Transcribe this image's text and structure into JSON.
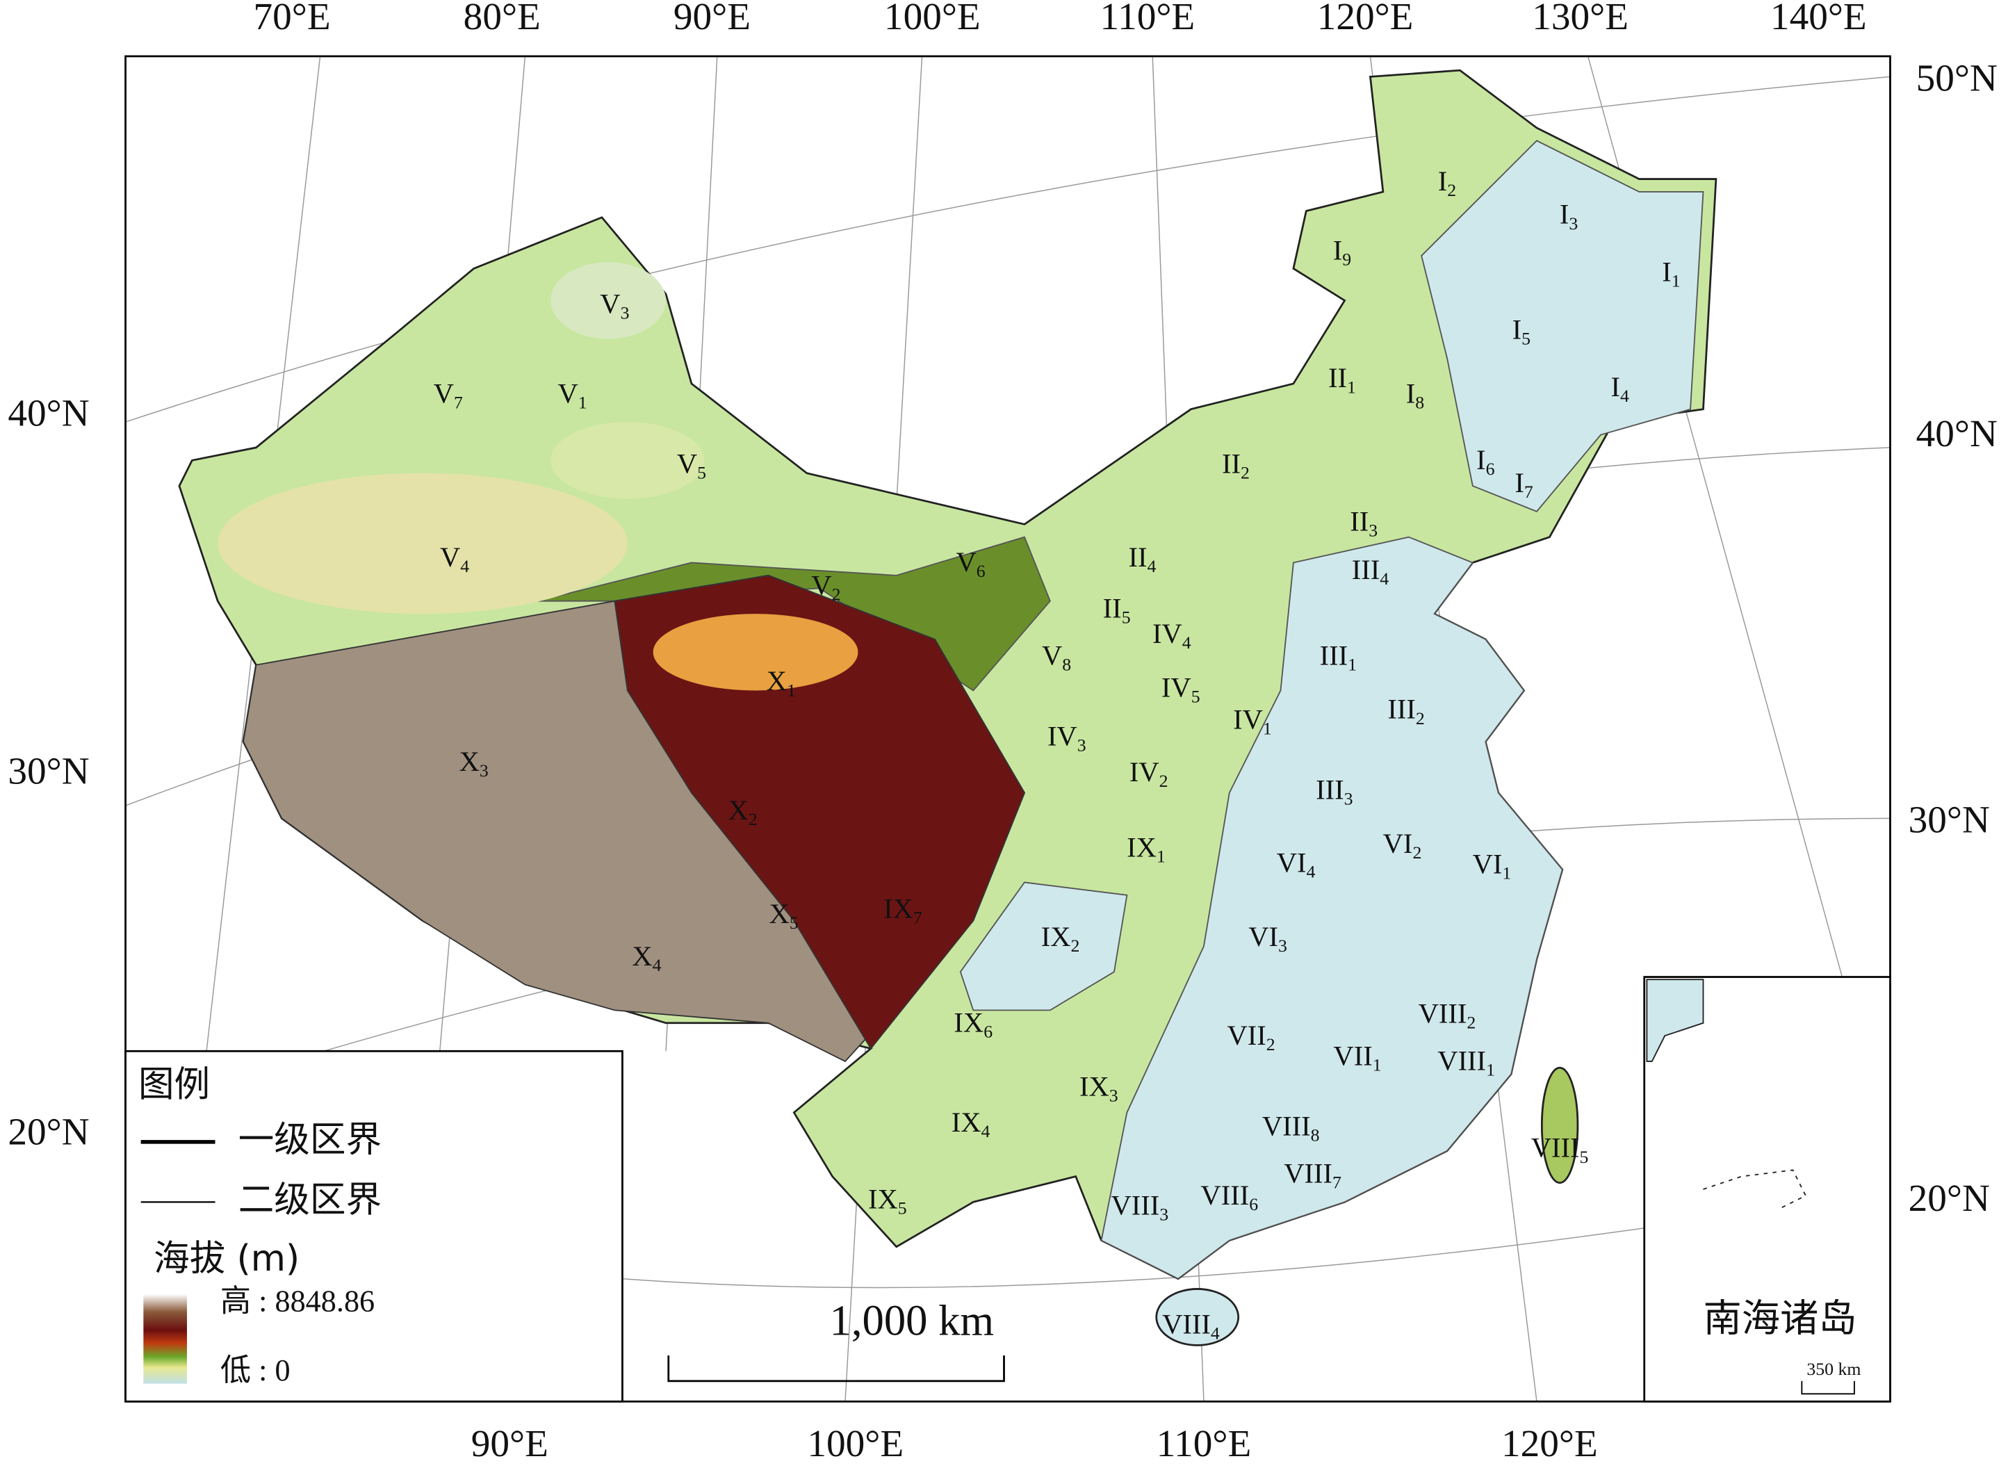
{
  "graticule": {
    "top": [
      "70°E",
      "80°E",
      "90°E",
      "100°E",
      "110°E",
      "120°E",
      "130°E",
      "140°E"
    ],
    "bottom": [
      "90°E",
      "100°E",
      "110°E",
      "120°E"
    ],
    "left": [
      "40°N",
      "30°N",
      "20°N"
    ],
    "right": [
      "50°N",
      "40°N",
      "30°N",
      "20°N"
    ]
  },
  "regions": [
    {
      "numeral": "I",
      "sub": "2"
    },
    {
      "numeral": "I",
      "sub": "3"
    },
    {
      "numeral": "I",
      "sub": "9"
    },
    {
      "numeral": "I",
      "sub": "1"
    },
    {
      "numeral": "I",
      "sub": "5"
    },
    {
      "numeral": "I",
      "sub": "4"
    },
    {
      "numeral": "II",
      "sub": "1"
    },
    {
      "numeral": "I",
      "sub": "8"
    },
    {
      "numeral": "I",
      "sub": "6"
    },
    {
      "numeral": "I",
      "sub": "7"
    },
    {
      "numeral": "II",
      "sub": "2"
    },
    {
      "numeral": "II",
      "sub": "3"
    },
    {
      "numeral": "II",
      "sub": "4"
    },
    {
      "numeral": "III",
      "sub": "4"
    },
    {
      "numeral": "II",
      "sub": "5"
    },
    {
      "numeral": "IV",
      "sub": "4"
    },
    {
      "numeral": "III",
      "sub": "1"
    },
    {
      "numeral": "X",
      "sub": "1"
    },
    {
      "numeral": "IV",
      "sub": "5"
    },
    {
      "numeral": "IV",
      "sub": "1"
    },
    {
      "numeral": "III",
      "sub": "2"
    },
    {
      "numeral": "IV",
      "sub": "3"
    },
    {
      "numeral": "X",
      "sub": "3"
    },
    {
      "numeral": "IV",
      "sub": "2"
    },
    {
      "numeral": "III",
      "sub": "3"
    },
    {
      "numeral": "X",
      "sub": "2"
    },
    {
      "numeral": "IX",
      "sub": "1"
    },
    {
      "numeral": "VI",
      "sub": "2"
    },
    {
      "numeral": "VI",
      "sub": "4"
    },
    {
      "numeral": "VI",
      "sub": "1"
    },
    {
      "numeral": "X",
      "sub": "5"
    },
    {
      "numeral": "IX",
      "sub": "7"
    },
    {
      "numeral": "IX",
      "sub": "2"
    },
    {
      "numeral": "VI",
      "sub": "3"
    },
    {
      "numeral": "X",
      "sub": "4"
    },
    {
      "numeral": "VIII",
      "sub": "2"
    },
    {
      "numeral": "IX",
      "sub": "6"
    },
    {
      "numeral": "VII",
      "sub": "2"
    },
    {
      "numeral": "VII",
      "sub": "1"
    },
    {
      "numeral": "VIII",
      "sub": "1"
    },
    {
      "numeral": "IX",
      "sub": "3"
    },
    {
      "numeral": "VIII",
      "sub": "8"
    },
    {
      "numeral": "IX",
      "sub": "4"
    },
    {
      "numeral": "VIII",
      "sub": "5"
    },
    {
      "numeral": "VIII",
      "sub": "7"
    },
    {
      "numeral": "VIII",
      "sub": "6"
    },
    {
      "numeral": "IX",
      "sub": "5"
    },
    {
      "numeral": "VIII",
      "sub": "3"
    },
    {
      "numeral": "VIII",
      "sub": "4"
    },
    {
      "numeral": "V",
      "sub": "3"
    },
    {
      "numeral": "V",
      "sub": "7"
    },
    {
      "numeral": "V",
      "sub": "1"
    },
    {
      "numeral": "V",
      "sub": "5"
    },
    {
      "numeral": "V",
      "sub": "4"
    },
    {
      "numeral": "V",
      "sub": "6"
    },
    {
      "numeral": "V",
      "sub": "2"
    },
    {
      "numeral": "V",
      "sub": "8"
    }
  ],
  "legend": {
    "title": "图例",
    "primary_boundary": "一级区界",
    "secondary_boundary": "二级区界",
    "elevation_title": "海拔 (m)",
    "high": "高 : 8848.86",
    "low": "低 : 0"
  },
  "scale_bar": {
    "label": "1,000 km"
  },
  "inset": {
    "title": "南海诸岛",
    "scale": "350 km"
  }
}
